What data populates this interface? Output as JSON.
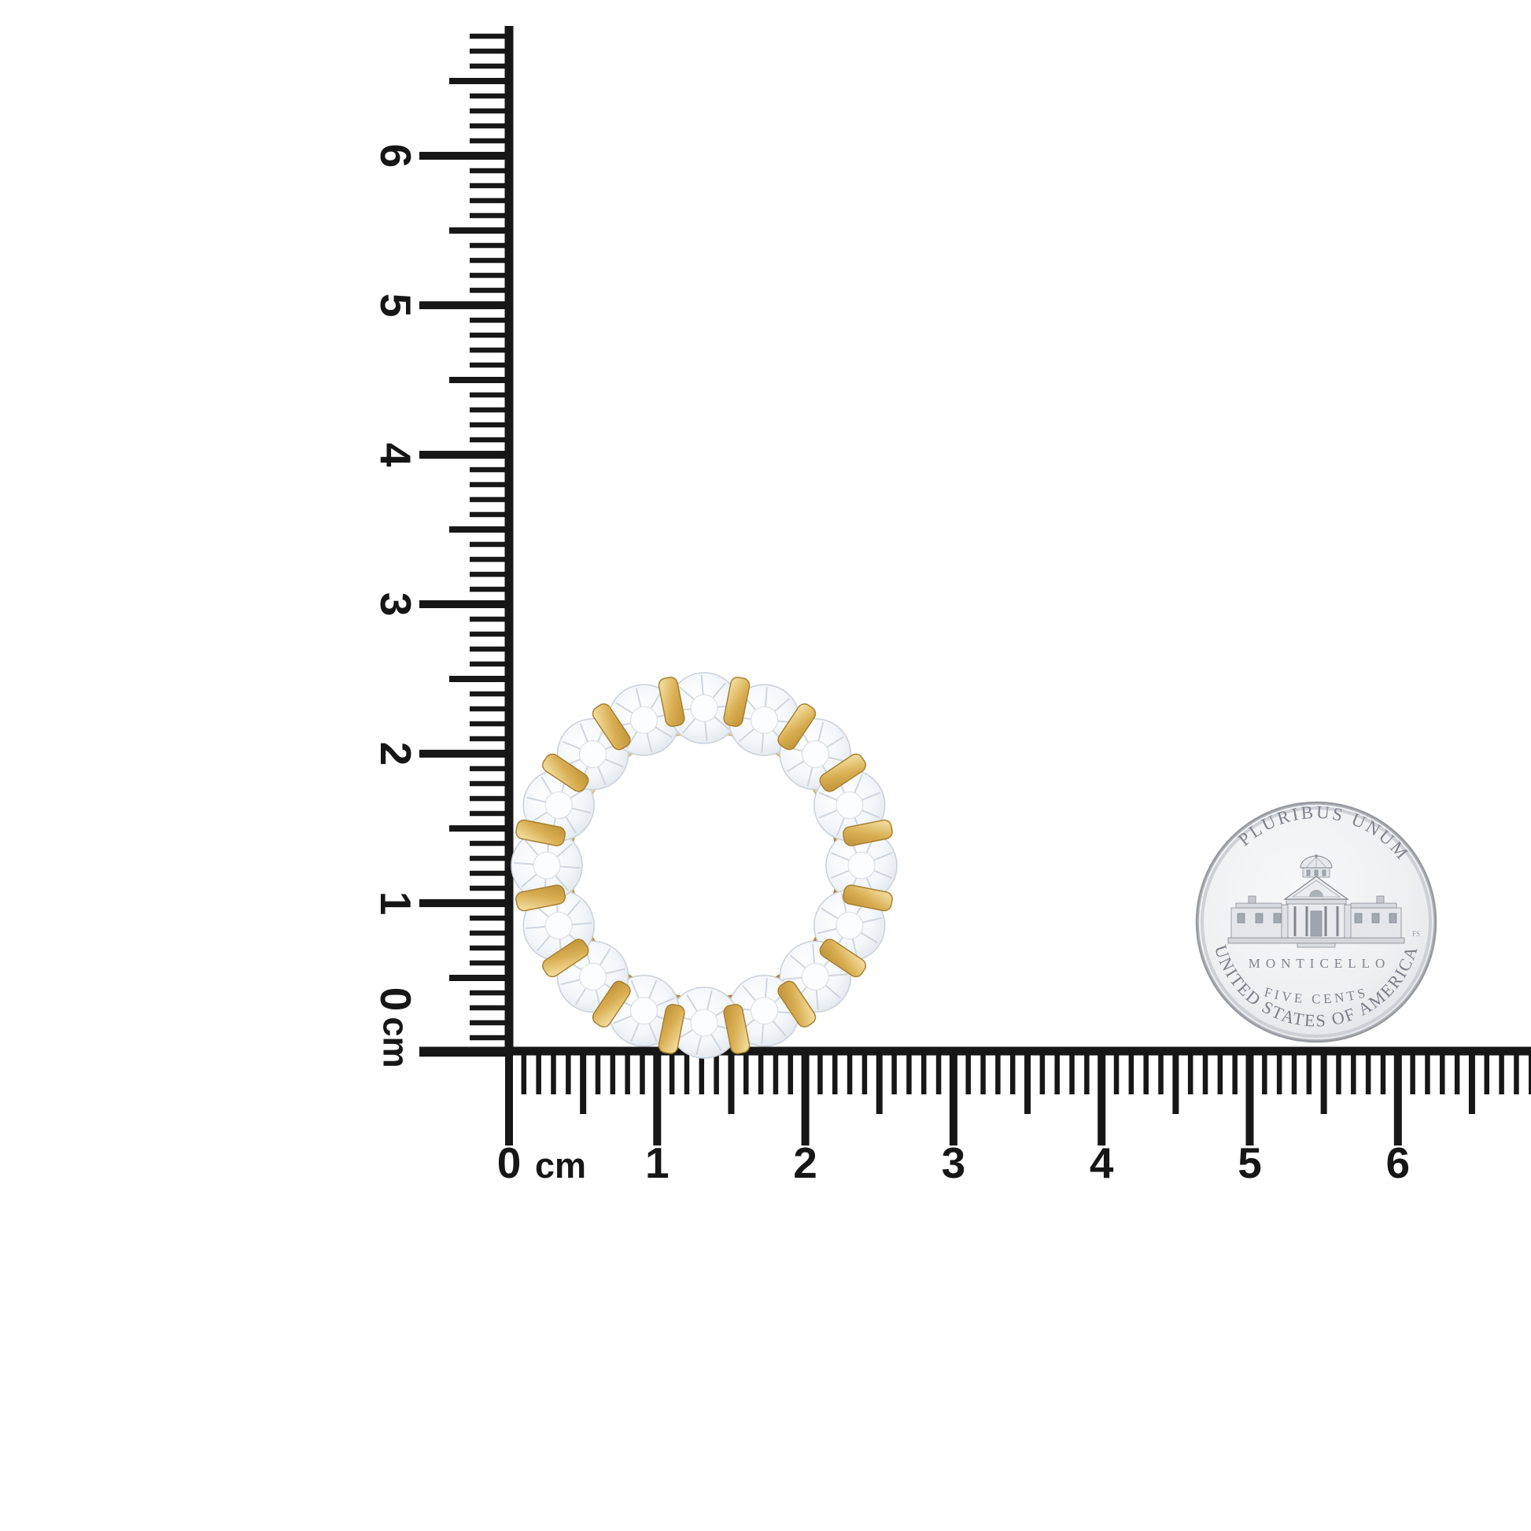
{
  "background_color": "#ffffff",
  "rulers": {
    "ink_color": "#171717",
    "unit": "cm",
    "vertical_labels": [
      "0",
      "1",
      "2",
      "3",
      "4",
      "5",
      "6"
    ],
    "horizontal_labels": [
      "0",
      "1",
      "2",
      "3",
      "4",
      "5",
      "6"
    ]
  },
  "ring": {
    "stone_count": 16,
    "metal_colors": {
      "light": "#F9EFC6",
      "mid": "#E2BB62",
      "deep": "#C2913A",
      "shadow": "#A87E2C"
    },
    "stone_colors": {
      "body": "#F3F6F9",
      "facet": "#C9D1DA",
      "table": "#FCFDFE"
    }
  },
  "coin": {
    "top_legend": "E PLURIBUS UNUM",
    "building_label": "MONTICELLO",
    "denomination": "FIVE CENTS",
    "bottom_legend": "UNITED STATES OF AMERICA",
    "designer_initials": "FS",
    "field_color": "#F0F1F3",
    "rim_color": "#C6C9CD",
    "engraving_color": "#7E838B"
  }
}
